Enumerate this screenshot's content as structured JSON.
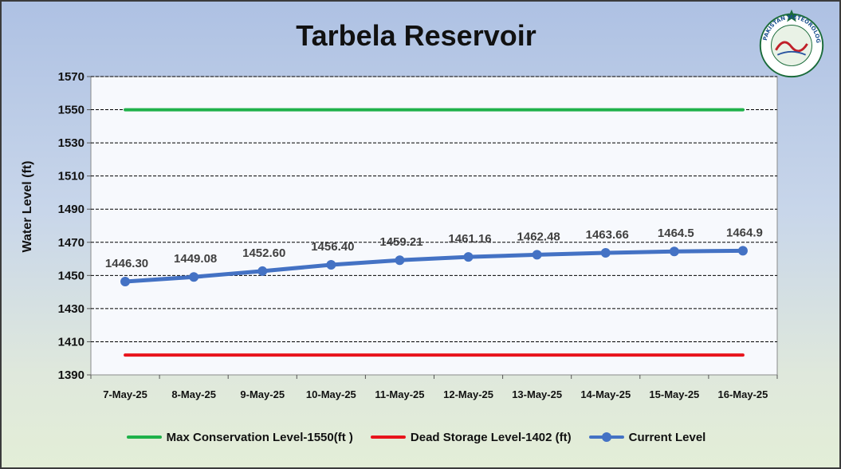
{
  "colors": {
    "max_line": "#1fb14a",
    "dead_line": "#e8141c",
    "current_line": "#4472c4",
    "plot_bg": "#f7f9fd",
    "grid": "#000000",
    "label_text": "#404040"
  },
  "logo": {
    "icon": "pakistan-meteorological-department-seal-icon",
    "text": "PAKISTAN METEOROLOGICAL DEPARTMENT"
  },
  "chart_data": {
    "type": "line",
    "title": "Tarbela Reservoir",
    "ylabel": "Water Level (ft)",
    "xlabel": "",
    "ylim": [
      1390,
      1570
    ],
    "yticks": [
      1390,
      1410,
      1430,
      1450,
      1470,
      1490,
      1510,
      1530,
      1550,
      1570
    ],
    "grid": true,
    "legend_position": "bottom",
    "categories": [
      "7-May-25",
      "8-May-25",
      "9-May-25",
      "10-May-25",
      "11-May-25",
      "12-May-25",
      "13-May-25",
      "14-May-25",
      "15-May-25",
      "16-May-25"
    ],
    "series": [
      {
        "name": "Max Conservation Level-1550(ft )",
        "values": [
          1550,
          1550,
          1550,
          1550,
          1550,
          1550,
          1550,
          1550,
          1550,
          1550
        ]
      },
      {
        "name": "Dead Storage Level-1402 (ft)",
        "values": [
          1402,
          1402,
          1402,
          1402,
          1402,
          1402,
          1402,
          1402,
          1402,
          1402
        ]
      },
      {
        "name": "Current Level",
        "values": [
          1446.3,
          1449.08,
          1452.6,
          1456.4,
          1459.21,
          1461.16,
          1462.48,
          1463.66,
          1464.5,
          1464.9
        ],
        "data_labels": [
          "1446.30",
          "1449.08",
          "1452.60",
          "1456.40",
          "1459.21",
          "1461.16",
          "1462.48",
          "1463.66",
          "1464.5",
          "1464.9"
        ]
      }
    ]
  }
}
